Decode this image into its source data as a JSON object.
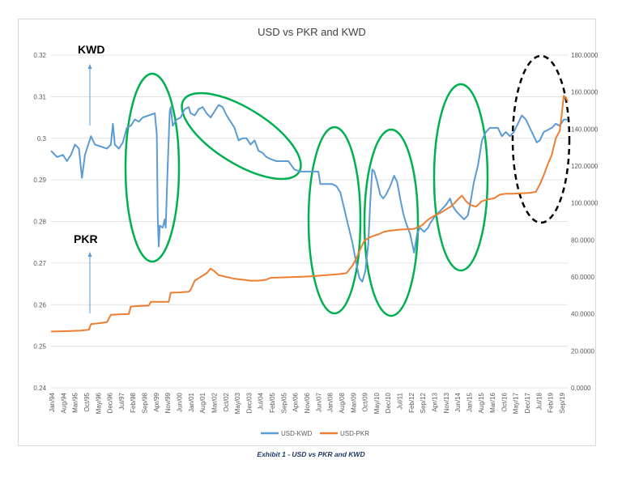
{
  "caption": "Exhibit 1 -  USD vs PKR and KWD",
  "annotations": {
    "kwd_label": "KWD",
    "pkr_label": "PKR"
  },
  "colors": {
    "kwd": "#5b9bd5",
    "pkr": "#ed7d31",
    "highlight": "#00b050",
    "future": "#000000",
    "grid": "#d9d9d9"
  },
  "chart_data": {
    "type": "line",
    "title": "USD vs PKR and KWD",
    "grid": true,
    "legend_position": "bottom",
    "y_left": {
      "ticks": [
        "0.24",
        "0.25",
        "0.26",
        "0.27",
        "0.28",
        "0.29",
        "0.3",
        "0.31",
        "0.32"
      ],
      "ylim": [
        0.24,
        0.32
      ]
    },
    "y_right": {
      "ticks": [
        "0.0000",
        "20.0000",
        "40.0000",
        "60.0000",
        "80.0000",
        "100.0000",
        "120.0000",
        "140.0000",
        "160.0000",
        "180.0000"
      ],
      "ylim": [
        0,
        180
      ]
    },
    "x_labels": [
      "Jan/94",
      "Aug/94",
      "Mar/95",
      "Oct/95",
      "May/96",
      "Dec/96",
      "Jul/97",
      "Feb/98",
      "Sep/98",
      "Apr/99",
      "Nov/99",
      "Jun/00",
      "Jan/01",
      "Aug/01",
      "Mar/02",
      "Oct/02",
      "May/03",
      "Dec/03",
      "Jul/04",
      "Feb/05",
      "Sep/05",
      "Apr/06",
      "Nov/06",
      "Jun/07",
      "Jan/08",
      "Aug/08",
      "Mar/09",
      "Oct/09",
      "May/10",
      "Dec/10",
      "Jul/11",
      "Feb/12",
      "Sep/12",
      "Apr/13",
      "Nov/13",
      "Jun/14",
      "Jan/15",
      "Aug/15",
      "Mar/16",
      "Oct/16",
      "May/17",
      "Dec/17",
      "Jul/18",
      "Feb/19",
      "Sep/19"
    ],
    "xlim": [
      1994.0,
      2019.9
    ],
    "series": [
      {
        "name": "USD-KWD",
        "axis": "left",
        "points": [
          [
            1994.0,
            0.297
          ],
          [
            1994.3,
            0.2955
          ],
          [
            1994.6,
            0.296
          ],
          [
            1994.8,
            0.2945
          ],
          [
            1995.0,
            0.296
          ],
          [
            1995.2,
            0.2985
          ],
          [
            1995.4,
            0.2975
          ],
          [
            1995.55,
            0.2905
          ],
          [
            1995.7,
            0.296
          ],
          [
            1995.9,
            0.299
          ],
          [
            1996.0,
            0.3005
          ],
          [
            1996.2,
            0.2985
          ],
          [
            1996.5,
            0.298
          ],
          [
            1996.8,
            0.2975
          ],
          [
            1997.0,
            0.2985
          ],
          [
            1997.1,
            0.3035
          ],
          [
            1997.2,
            0.2985
          ],
          [
            1997.4,
            0.2975
          ],
          [
            1997.6,
            0.299
          ],
          [
            1997.8,
            0.3025
          ],
          [
            1998.0,
            0.303
          ],
          [
            1998.2,
            0.3045
          ],
          [
            1998.4,
            0.304
          ],
          [
            1998.6,
            0.305
          ],
          [
            1998.9,
            0.3055
          ],
          [
            1999.2,
            0.306
          ],
          [
            1999.3,
            0.301
          ],
          [
            1999.35,
            0.281
          ],
          [
            1999.4,
            0.274
          ],
          [
            1999.45,
            0.279
          ],
          [
            1999.6,
            0.2785
          ],
          [
            1999.7,
            0.2805
          ],
          [
            1999.75,
            0.2785
          ],
          [
            1999.85,
            0.2935
          ],
          [
            1999.95,
            0.3065
          ],
          [
            2000.0,
            0.3075
          ],
          [
            2000.1,
            0.303
          ],
          [
            2000.3,
            0.3045
          ],
          [
            2000.5,
            0.305
          ],
          [
            2000.7,
            0.307
          ],
          [
            2000.9,
            0.3075
          ],
          [
            2001.0,
            0.306
          ],
          [
            2001.2,
            0.3055
          ],
          [
            2001.4,
            0.307
          ],
          [
            2001.6,
            0.3075
          ],
          [
            2001.8,
            0.306
          ],
          [
            2002.0,
            0.305
          ],
          [
            2002.2,
            0.3065
          ],
          [
            2002.4,
            0.308
          ],
          [
            2002.6,
            0.3075
          ],
          [
            2002.8,
            0.3055
          ],
          [
            2003.0,
            0.304
          ],
          [
            2003.2,
            0.3025
          ],
          [
            2003.4,
            0.2995
          ],
          [
            2003.6,
            0.3
          ],
          [
            2003.8,
            0.3
          ],
          [
            2004.0,
            0.2985
          ],
          [
            2004.2,
            0.2995
          ],
          [
            2004.4,
            0.297
          ],
          [
            2004.6,
            0.2965
          ],
          [
            2004.8,
            0.2955
          ],
          [
            2005.0,
            0.295
          ],
          [
            2005.3,
            0.2945
          ],
          [
            2005.6,
            0.2945
          ],
          [
            2005.9,
            0.2945
          ],
          [
            2006.2,
            0.2925
          ],
          [
            2006.5,
            0.292
          ],
          [
            2006.8,
            0.292
          ],
          [
            2007.1,
            0.292
          ],
          [
            2007.4,
            0.292
          ],
          [
            2007.5,
            0.289
          ],
          [
            2007.8,
            0.289
          ],
          [
            2008.1,
            0.289
          ],
          [
            2008.3,
            0.2885
          ],
          [
            2008.5,
            0.287
          ],
          [
            2008.7,
            0.283
          ],
          [
            2008.9,
            0.279
          ],
          [
            2009.1,
            0.275
          ],
          [
            2009.3,
            0.27
          ],
          [
            2009.45,
            0.2665
          ],
          [
            2009.6,
            0.2655
          ],
          [
            2009.75,
            0.268
          ],
          [
            2009.9,
            0.2745
          ],
          [
            2010.0,
            0.2845
          ],
          [
            2010.1,
            0.2925
          ],
          [
            2010.2,
            0.292
          ],
          [
            2010.35,
            0.2895
          ],
          [
            2010.5,
            0.2865
          ],
          [
            2010.65,
            0.2855
          ],
          [
            2010.8,
            0.2865
          ],
          [
            2011.0,
            0.2885
          ],
          [
            2011.2,
            0.291
          ],
          [
            2011.35,
            0.2895
          ],
          [
            2011.5,
            0.2855
          ],
          [
            2011.65,
            0.282
          ],
          [
            2011.8,
            0.2795
          ],
          [
            2012.0,
            0.277
          ],
          [
            2012.2,
            0.2725
          ],
          [
            2012.35,
            0.277
          ],
          [
            2012.5,
            0.2785
          ],
          [
            2012.7,
            0.2775
          ],
          [
            2012.9,
            0.2785
          ],
          [
            2013.0,
            0.2795
          ],
          [
            2013.2,
            0.281
          ],
          [
            2013.4,
            0.282
          ],
          [
            2013.6,
            0.283
          ],
          [
            2013.8,
            0.284
          ],
          [
            2014.0,
            0.2855
          ],
          [
            2014.1,
            0.284
          ],
          [
            2014.3,
            0.2825
          ],
          [
            2014.5,
            0.2815
          ],
          [
            2014.7,
            0.2805
          ],
          [
            2014.9,
            0.2815
          ],
          [
            2015.0,
            0.284
          ],
          [
            2015.2,
            0.2895
          ],
          [
            2015.4,
            0.2935
          ],
          [
            2015.6,
            0.2995
          ],
          [
            2015.8,
            0.3015
          ],
          [
            2016.0,
            0.3025
          ],
          [
            2016.2,
            0.3025
          ],
          [
            2016.4,
            0.3025
          ],
          [
            2016.6,
            0.3005
          ],
          [
            2016.8,
            0.3015
          ],
          [
            2017.0,
            0.3005
          ],
          [
            2017.2,
            0.3015
          ],
          [
            2017.4,
            0.3035
          ],
          [
            2017.6,
            0.3055
          ],
          [
            2017.8,
            0.3045
          ],
          [
            2018.0,
            0.3025
          ],
          [
            2018.2,
            0.3005
          ],
          [
            2018.35,
            0.299
          ],
          [
            2018.5,
            0.2995
          ],
          [
            2018.7,
            0.3015
          ],
          [
            2018.9,
            0.302
          ],
          [
            2019.1,
            0.3025
          ],
          [
            2019.3,
            0.3035
          ],
          [
            2019.5,
            0.303
          ],
          [
            2019.7,
            0.3045
          ],
          [
            2019.9,
            0.3045
          ]
        ]
      },
      {
        "name": "USD-PKR",
        "axis": "right",
        "points": [
          [
            1994.0,
            30.5
          ],
          [
            1994.5,
            30.6
          ],
          [
            1995.0,
            30.8
          ],
          [
            1995.5,
            31.0
          ],
          [
            1995.9,
            31.5
          ],
          [
            1996.0,
            34.5
          ],
          [
            1996.4,
            35.0
          ],
          [
            1996.8,
            35.5
          ],
          [
            1997.0,
            39.5
          ],
          [
            1997.5,
            39.8
          ],
          [
            1997.9,
            40.0
          ],
          [
            1998.0,
            44.0
          ],
          [
            1998.5,
            44.3
          ],
          [
            1998.9,
            44.5
          ],
          [
            1999.0,
            46.5
          ],
          [
            1999.5,
            46.5
          ],
          [
            1999.9,
            46.5
          ],
          [
            2000.0,
            51.5
          ],
          [
            2000.5,
            51.7
          ],
          [
            2000.9,
            52.0
          ],
          [
            2001.0,
            53.0
          ],
          [
            2001.2,
            58.0
          ],
          [
            2001.5,
            60.0
          ],
          [
            2001.8,
            62.0
          ],
          [
            2002.0,
            64.5
          ],
          [
            2002.2,
            63.0
          ],
          [
            2002.4,
            61.0
          ],
          [
            2002.8,
            60.0
          ],
          [
            2003.2,
            59.0
          ],
          [
            2003.6,
            58.5
          ],
          [
            2004.0,
            58.0
          ],
          [
            2004.4,
            58.0
          ],
          [
            2004.8,
            58.5
          ],
          [
            2005.0,
            59.5
          ],
          [
            2005.4,
            59.7
          ],
          [
            2006.0,
            59.9
          ],
          [
            2006.6,
            60.1
          ],
          [
            2007.2,
            60.5
          ],
          [
            2007.8,
            61.0
          ],
          [
            2008.4,
            61.5
          ],
          [
            2008.8,
            62.0
          ],
          [
            2009.1,
            66.0
          ],
          [
            2009.3,
            70.0
          ],
          [
            2009.5,
            75.0
          ],
          [
            2009.7,
            79.5
          ],
          [
            2009.9,
            81.0
          ],
          [
            2010.1,
            82.0
          ],
          [
            2010.4,
            83.0
          ],
          [
            2010.7,
            84.5
          ],
          [
            2011.0,
            85.0
          ],
          [
            2011.4,
            85.5
          ],
          [
            2011.8,
            85.8
          ],
          [
            2012.2,
            86.0
          ],
          [
            2012.6,
            88.0
          ],
          [
            2012.9,
            91.0
          ],
          [
            2013.2,
            93.0
          ],
          [
            2013.5,
            94.5
          ],
          [
            2013.8,
            96.5
          ],
          [
            2014.1,
            98.5
          ],
          [
            2014.4,
            102.0
          ],
          [
            2014.6,
            104.0
          ],
          [
            2014.8,
            101.0
          ],
          [
            2015.0,
            99.0
          ],
          [
            2015.3,
            98.0
          ],
          [
            2015.6,
            101.0
          ],
          [
            2015.9,
            102.0
          ],
          [
            2016.2,
            102.5
          ],
          [
            2016.5,
            104.5
          ],
          [
            2016.8,
            105.0
          ],
          [
            2017.2,
            105.0
          ],
          [
            2017.6,
            105.2
          ],
          [
            2018.0,
            105.5
          ],
          [
            2018.3,
            106.0
          ],
          [
            2018.5,
            110.0
          ],
          [
            2018.7,
            115.0
          ],
          [
            2018.9,
            121.0
          ],
          [
            2019.1,
            126.0
          ],
          [
            2019.3,
            135.0
          ],
          [
            2019.5,
            139.0
          ],
          [
            2019.6,
            148.0
          ],
          [
            2019.7,
            158.0
          ],
          [
            2019.8,
            157.0
          ],
          [
            2019.9,
            155.0
          ]
        ]
      }
    ]
  }
}
